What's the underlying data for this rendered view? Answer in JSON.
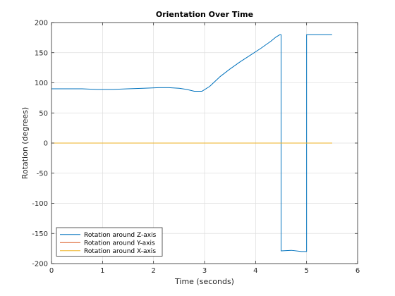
{
  "chart_data": {
    "type": "line",
    "title": "Orientation Over Time",
    "xlabel": "Time (seconds)",
    "ylabel": "Rotation (degrees)",
    "xlim": [
      0,
      6
    ],
    "ylim": [
      -200,
      200
    ],
    "xticks": [
      0,
      1,
      2,
      3,
      4,
      5,
      6
    ],
    "yticks": [
      -200,
      -150,
      -100,
      -50,
      0,
      50,
      100,
      150,
      200
    ],
    "grid": true,
    "legend_position": "bottom-left",
    "series": [
      {
        "name": "Rotation around Z-axis",
        "color": "#0072BD",
        "x": [
          0,
          0.3,
          0.6,
          0.9,
          1.2,
          1.5,
          1.8,
          2.1,
          2.3,
          2.5,
          2.65,
          2.8,
          2.95,
          3.1,
          3.3,
          3.5,
          3.7,
          3.9,
          4.1,
          4.3,
          4.4,
          4.48,
          4.5,
          4.5,
          4.7,
          4.9,
          5.0,
          5.0,
          5.1,
          5.3,
          5.5
        ],
        "y": [
          90,
          90,
          90,
          89,
          89,
          90,
          91,
          92,
          92,
          91,
          89,
          86,
          86,
          94,
          110,
          123,
          135,
          146,
          157,
          169,
          176,
          180,
          180,
          -179,
          -178,
          -180,
          -180,
          180,
          180,
          180,
          180
        ]
      },
      {
        "name": "Rotation around Y-axis",
        "color": "#D95319",
        "x": [
          0,
          5.5
        ],
        "y": [
          0,
          0
        ]
      },
      {
        "name": "Rotation around X-axis",
        "color": "#EDB120",
        "x": [
          0,
          5.5
        ],
        "y": [
          0,
          0
        ]
      }
    ]
  }
}
